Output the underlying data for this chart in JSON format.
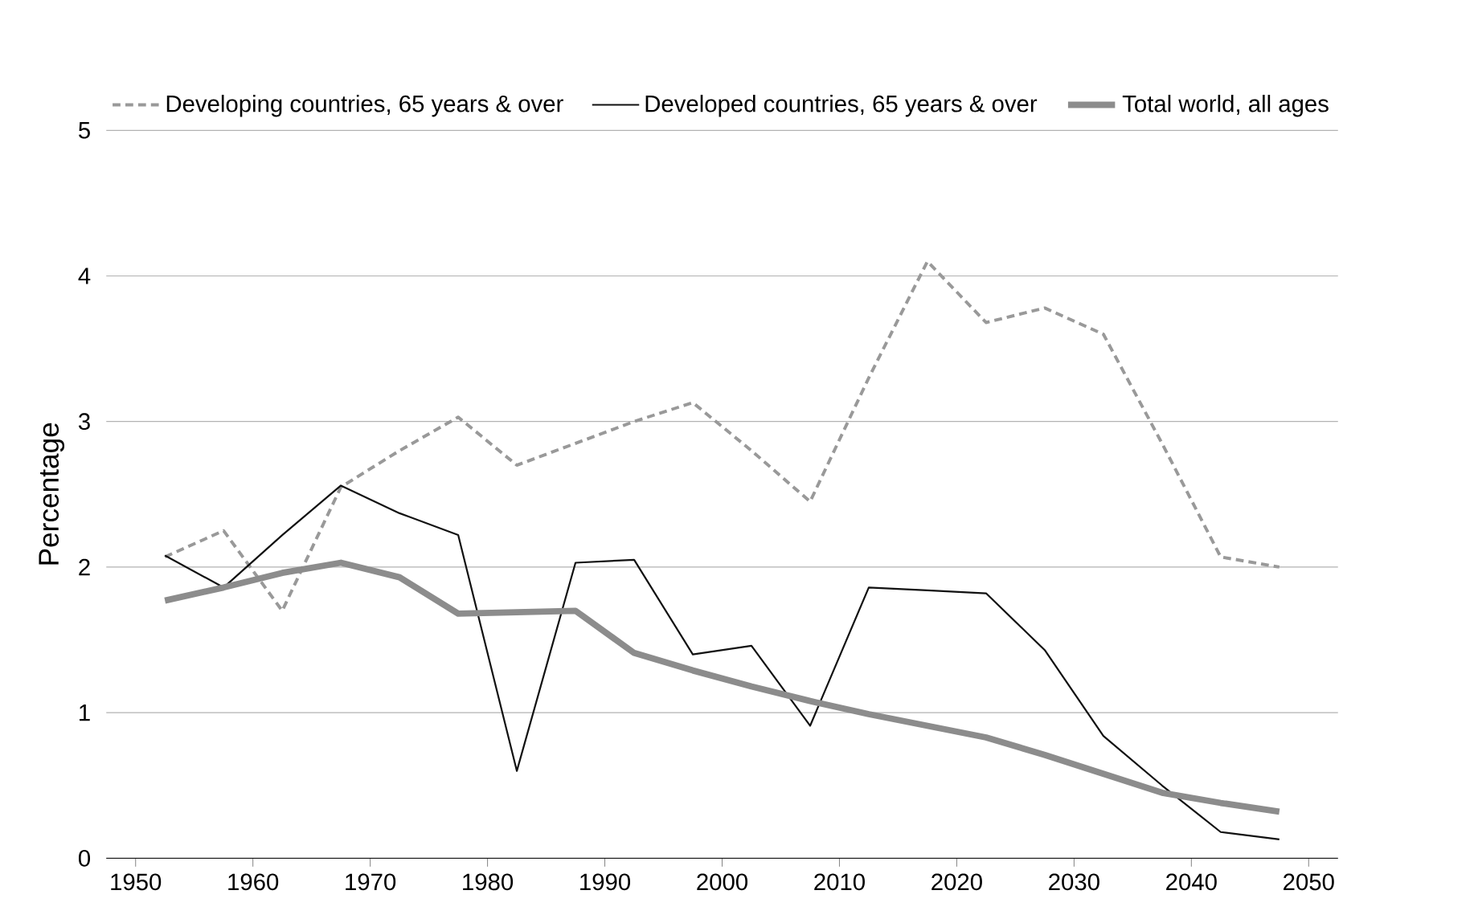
{
  "chart_data": {
    "type": "line",
    "ylabel": "Percentage",
    "x": [
      1952.5,
      1957.5,
      1962.5,
      1967.5,
      1972.5,
      1977.5,
      1982.5,
      1987.5,
      1992.5,
      1997.5,
      2002.5,
      2007.5,
      2012.5,
      2017.5,
      2022.5,
      2027.5,
      2032.5,
      2037.5,
      2042.5,
      2047.5
    ],
    "series": [
      {
        "name": "Developing countries, 65 years & over",
        "color": "#999999",
        "line_style": "dashed",
        "values": [
          2.07,
          2.25,
          1.7,
          2.55,
          2.8,
          3.03,
          2.7,
          2.85,
          3.0,
          3.13,
          2.8,
          2.45,
          3.3,
          4.1,
          3.68,
          3.78,
          3.6,
          2.85,
          2.07,
          2.0
        ]
      },
      {
        "name": "Developed countries, 65 years & over",
        "color": "#111111",
        "line_style": "solid",
        "values": [
          2.08,
          1.86,
          2.22,
          2.56,
          2.37,
          2.22,
          0.6,
          2.03,
          2.05,
          1.4,
          1.46,
          0.91,
          1.86,
          1.84,
          1.82,
          1.43,
          0.84,
          0.5,
          0.18,
          0.13
        ]
      },
      {
        "name": "Total world, all ages",
        "color": "#8c8c8c",
        "line_style": "solid",
        "values": [
          1.77,
          1.86,
          1.96,
          2.03,
          1.93,
          1.68,
          1.69,
          1.7,
          1.41,
          1.29,
          1.18,
          1.08,
          0.99,
          0.91,
          0.83,
          0.71,
          0.58,
          0.45,
          0.38,
          0.32
        ]
      }
    ],
    "xlim": [
      1947.5,
      2052.5
    ],
    "ylim": [
      0,
      5
    ],
    "xticks": [
      1950,
      1960,
      1970,
      1980,
      1990,
      2000,
      2010,
      2020,
      2030,
      2040,
      2050
    ],
    "yticks": [
      0,
      1,
      2,
      3,
      4,
      5
    ],
    "grid": "y",
    "legend": "top",
    "marker": "none"
  }
}
